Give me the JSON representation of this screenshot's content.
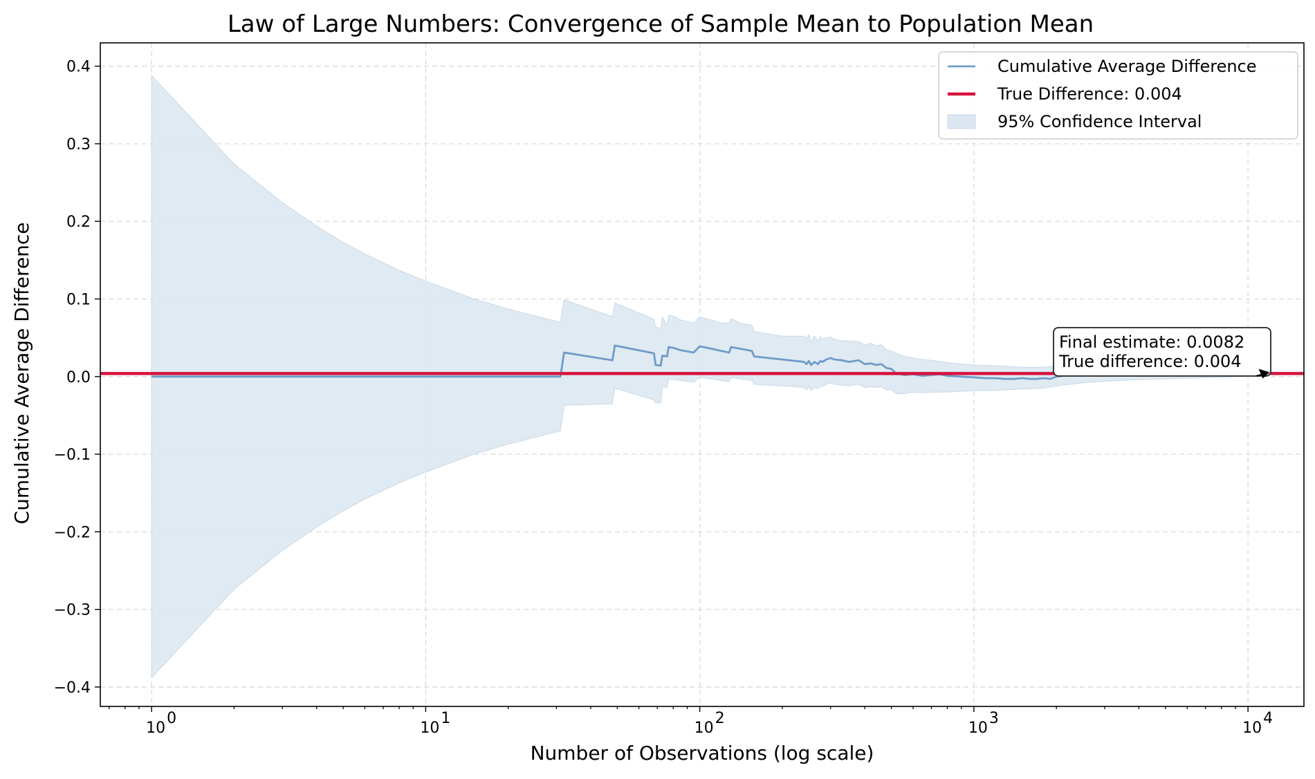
{
  "chart_data": {
    "type": "line",
    "title": "Law of Large Numbers: Convergence of Sample Mean to Population Mean",
    "xlabel": "Number of Observations (log scale)",
    "ylabel": "Cumulative Average Difference",
    "xscale": "log",
    "xlim": [
      0.65,
      16000
    ],
    "ylim": [
      -0.425,
      0.43
    ],
    "grid": true,
    "legend_position": "top-right",
    "x_ticks": [
      {
        "value": 1,
        "base": "10",
        "exp": "0"
      },
      {
        "value": 10,
        "base": "10",
        "exp": "1"
      },
      {
        "value": 100,
        "base": "10",
        "exp": "2"
      },
      {
        "value": 1000,
        "base": "10",
        "exp": "3"
      },
      {
        "value": 10000,
        "base": "10",
        "exp": "4"
      }
    ],
    "y_ticks": [
      {
        "value": 0.4,
        "label": "0.4"
      },
      {
        "value": 0.3,
        "label": "0.3"
      },
      {
        "value": 0.2,
        "label": "0.2"
      },
      {
        "value": 0.1,
        "label": "0.1"
      },
      {
        "value": 0.0,
        "label": "0.0"
      },
      {
        "value": -0.1,
        "label": "−0.1"
      },
      {
        "value": -0.2,
        "label": "−0.2"
      },
      {
        "value": -0.3,
        "label": "−0.3"
      },
      {
        "value": -0.4,
        "label": "−0.4"
      }
    ],
    "series": [
      {
        "name": "Cumulative Average Difference",
        "kind": "line",
        "color": "#6e9bc9",
        "x": [
          1,
          31,
          32,
          48,
          49,
          68,
          69,
          72,
          73,
          76,
          77,
          80,
          85,
          95,
          100,
          110,
          120,
          128,
          130,
          140,
          155,
          158,
          200,
          240,
          245,
          250,
          255,
          262,
          270,
          275,
          280,
          290,
          300,
          310,
          330,
          350,
          380,
          400,
          420,
          440,
          460,
          480,
          500,
          520,
          560,
          600,
          650,
          700,
          750,
          800,
          900,
          1000,
          1100,
          1200,
          1300,
          1400,
          1500,
          1600,
          1700,
          1800,
          1900,
          2000,
          2200,
          2500,
          3000,
          4000,
          5000,
          6000,
          8000,
          10000,
          12000
        ],
        "y": [
          0.0,
          0.0,
          0.031,
          0.021,
          0.04,
          0.03,
          0.015,
          0.014,
          0.027,
          0.026,
          0.038,
          0.037,
          0.034,
          0.031,
          0.039,
          0.036,
          0.033,
          0.031,
          0.038,
          0.036,
          0.033,
          0.026,
          0.022,
          0.019,
          0.016,
          0.02,
          0.015,
          0.019,
          0.016,
          0.02,
          0.019,
          0.022,
          0.024,
          0.022,
          0.021,
          0.019,
          0.021,
          0.016,
          0.017,
          0.015,
          0.016,
          0.011,
          0.01,
          0.004,
          0.002,
          0.003,
          0.001,
          0.002,
          0.003,
          0.001,
          0.0,
          -0.001,
          -0.002,
          -0.002,
          -0.003,
          -0.003,
          -0.002,
          -0.003,
          -0.003,
          -0.002,
          -0.003,
          0.0,
          0.002,
          0.004,
          0.006,
          0.007,
          0.007,
          0.008,
          0.008,
          0.008,
          0.0082
        ]
      },
      {
        "name": "True Difference: 0.004",
        "kind": "hline",
        "color": "#d6123d",
        "value": 0.004
      },
      {
        "name": "95% Confidence Interval",
        "kind": "band",
        "color": "#dbe6f0",
        "x": [
          1,
          2,
          3,
          4,
          5,
          6,
          8,
          10,
          15,
          20,
          31,
          32,
          48,
          49,
          68,
          69,
          72,
          73,
          76,
          77,
          80,
          85,
          95,
          100,
          110,
          120,
          128,
          130,
          140,
          155,
          158,
          200,
          240,
          245,
          250,
          255,
          262,
          270,
          275,
          280,
          290,
          300,
          310,
          330,
          350,
          380,
          400,
          420,
          440,
          460,
          480,
          500,
          520,
          560,
          600,
          650,
          700,
          800,
          1000,
          1200,
          1500,
          1800,
          2000,
          2500,
          3000,
          4000,
          5000,
          6000,
          8000,
          10000,
          12000
        ],
        "lower": [
          -0.388,
          -0.274,
          -0.224,
          -0.194,
          -0.173,
          -0.158,
          -0.137,
          -0.123,
          -0.1,
          -0.087,
          -0.07,
          -0.037,
          -0.035,
          -0.015,
          -0.03,
          -0.034,
          -0.034,
          -0.013,
          -0.014,
          -0.003,
          -0.004,
          -0.005,
          -0.007,
          -0.001,
          -0.003,
          -0.005,
          -0.007,
          -0.001,
          -0.003,
          -0.005,
          -0.01,
          -0.012,
          -0.014,
          -0.017,
          -0.013,
          -0.018,
          -0.014,
          -0.016,
          -0.012,
          -0.013,
          -0.01,
          -0.008,
          -0.01,
          -0.011,
          -0.012,
          -0.01,
          -0.014,
          -0.013,
          -0.014,
          -0.013,
          -0.017,
          -0.017,
          -0.022,
          -0.022,
          -0.02,
          -0.021,
          -0.02,
          -0.02,
          -0.018,
          -0.018,
          -0.016,
          -0.015,
          -0.012,
          -0.008,
          -0.006,
          -0.004,
          -0.003,
          -0.002,
          -0.001,
          0.0,
          0.001
        ],
        "upper": [
          0.388,
          0.274,
          0.224,
          0.194,
          0.173,
          0.158,
          0.137,
          0.123,
          0.1,
          0.087,
          0.07,
          0.099,
          0.077,
          0.095,
          0.074,
          0.064,
          0.062,
          0.077,
          0.066,
          0.079,
          0.078,
          0.073,
          0.069,
          0.077,
          0.073,
          0.069,
          0.069,
          0.075,
          0.069,
          0.066,
          0.058,
          0.052,
          0.052,
          0.049,
          0.054,
          0.044,
          0.052,
          0.046,
          0.051,
          0.048,
          0.05,
          0.051,
          0.048,
          0.046,
          0.046,
          0.045,
          0.041,
          0.043,
          0.04,
          0.041,
          0.034,
          0.033,
          0.03,
          0.026,
          0.024,
          0.022,
          0.021,
          0.018,
          0.015,
          0.014,
          0.012,
          0.012,
          0.014,
          0.015,
          0.016,
          0.016,
          0.016,
          0.016,
          0.016,
          0.016,
          0.016
        ]
      }
    ],
    "legend": [
      {
        "label": "Cumulative Average Difference",
        "kind": "line",
        "color": "#6e9bc9"
      },
      {
        "label": "True Difference: 0.004",
        "kind": "line",
        "color": "#d6123d"
      },
      {
        "label": "95% Confidence Interval",
        "kind": "patch",
        "color": "#dbe6f0"
      }
    ],
    "annotation": {
      "line1": "Final estimate: 0.0082",
      "line2": "True difference: 0.004",
      "arrow_target_x": 12000,
      "arrow_target_y": 0.0082
    }
  }
}
